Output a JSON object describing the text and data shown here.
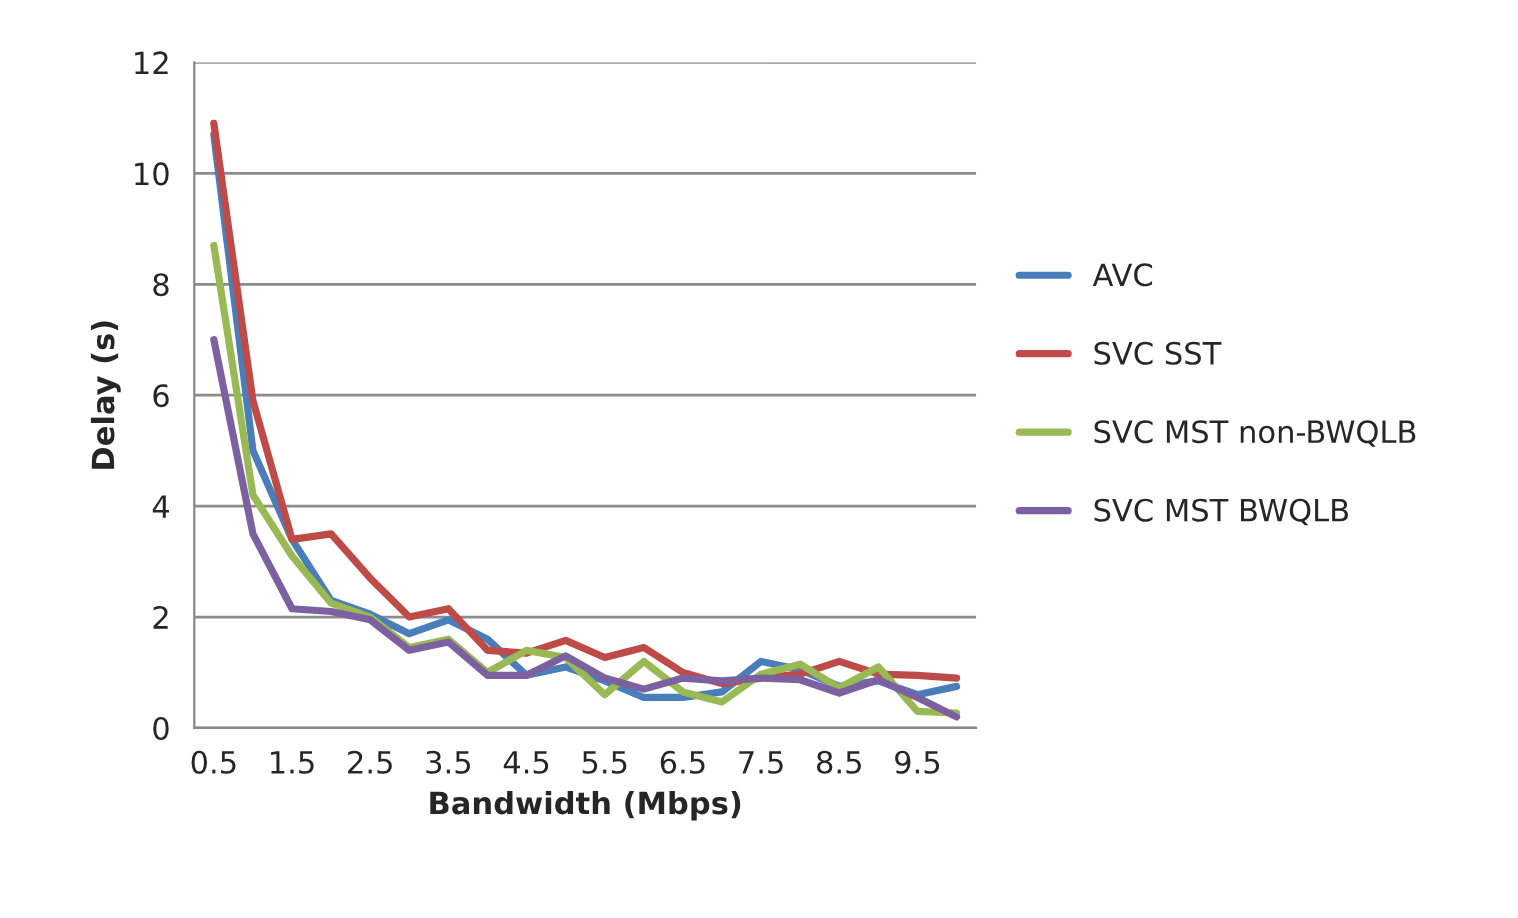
{
  "chart_data": {
    "type": "line",
    "xlabel": "Bandwidth (Mbps)",
    "ylabel": "Delay (s)",
    "categories": [
      "0.5",
      null,
      "1.5",
      null,
      "2.5",
      null,
      "3.5",
      null,
      "4.5",
      null,
      "5.5",
      null,
      "6.5",
      null,
      "7.5",
      null,
      "8.5",
      null,
      "9.5",
      null
    ],
    "series": [
      {
        "name": "AVC",
        "color": "#4a7ebb",
        "values": [
          10.7,
          5.0,
          3.4,
          2.3,
          2.05,
          1.7,
          1.95,
          1.6,
          0.95,
          1.1,
          0.85,
          0.55,
          0.55,
          0.65,
          1.2,
          1.05,
          0.75,
          0.85,
          0.6,
          0.75
        ]
      },
      {
        "name": "SVC SST",
        "color": "#be4b48",
        "values": [
          10.9,
          5.9,
          3.4,
          3.5,
          2.7,
          2.0,
          2.15,
          1.4,
          1.35,
          1.58,
          1.27,
          1.45,
          1.0,
          0.8,
          0.9,
          0.97,
          1.2,
          0.97,
          0.95,
          0.9
        ]
      },
      {
        "name": "SVC MST non-BWQLB",
        "color": "#98b954",
        "values": [
          8.7,
          4.2,
          3.1,
          2.25,
          2.0,
          1.45,
          1.6,
          1.0,
          1.4,
          1.27,
          0.6,
          1.2,
          0.65,
          0.47,
          0.97,
          1.15,
          0.72,
          1.1,
          0.3,
          0.27
        ]
      },
      {
        "name": "SVC MST BWQLB",
        "color": "#7d60a0",
        "values": [
          7.0,
          3.5,
          2.15,
          2.1,
          1.95,
          1.4,
          1.55,
          0.95,
          0.95,
          1.3,
          0.9,
          0.7,
          0.9,
          0.85,
          0.9,
          0.87,
          0.63,
          0.87,
          0.55,
          0.2
        ]
      }
    ],
    "ylim": [
      0,
      12
    ],
    "yticks": [
      0,
      2,
      4,
      6,
      8,
      10,
      12
    ],
    "grid": "y",
    "legend": "right",
    "marker": "none",
    "line_style": "solid"
  }
}
